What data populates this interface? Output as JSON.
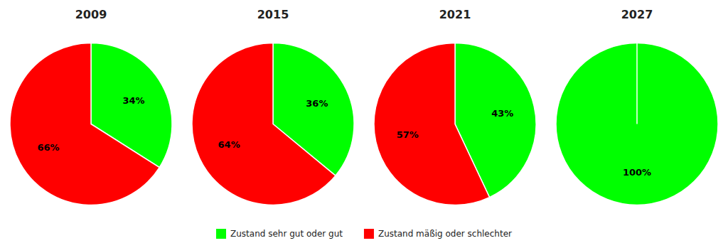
{
  "chart_data": {
    "type": "pie",
    "categories": [
      "2009",
      "2015",
      "2021",
      "2027"
    ],
    "series": [
      {
        "name": "Zustand sehr gut oder gut",
        "color": "#00FF00",
        "values": [
          34,
          36,
          43,
          100
        ],
        "value_labels": [
          "34%",
          "36%",
          "43%",
          "100%"
        ]
      },
      {
        "name": "Zustand mäßig oder schlechter",
        "color": "#FF0000",
        "values": [
          66,
          64,
          57,
          0
        ],
        "value_labels": [
          "66%",
          "64%",
          "57%",
          null
        ]
      }
    ],
    "data_labels": true,
    "legend": "bottom"
  }
}
